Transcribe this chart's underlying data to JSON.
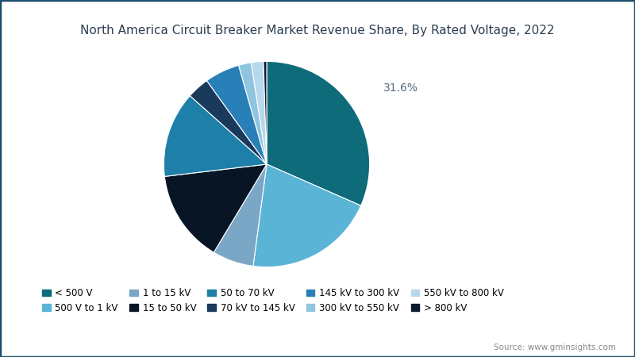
{
  "title": "North America Circuit Breaker Market Revenue Share, By Rated Voltage, 2022",
  "source": "Source: www.gminsights.com",
  "annotation": "31.6%",
  "slices": [
    {
      "label": "< 500 V",
      "value": 31.6,
      "color": "#0d6b7a"
    },
    {
      "label": "500 V to 1 kV",
      "value": 20.5,
      "color": "#5ab4d6"
    },
    {
      "label": "1 to 15 kV",
      "value": 6.5,
      "color": "#7ba7c7"
    },
    {
      "label": "15 to 50 kV",
      "value": 14.5,
      "color": "#071525"
    },
    {
      "label": "50 to 70 kV",
      "value": 13.5,
      "color": "#1e7fa8"
    },
    {
      "label": "70 kV to 145 kV",
      "value": 3.5,
      "color": "#1a3a5c"
    },
    {
      "label": "145 kV to 300 kV",
      "value": 5.5,
      "color": "#2980b9"
    },
    {
      "label": "300 kV to 550 kV",
      "value": 2.0,
      "color": "#90c5e0"
    },
    {
      "label": "550 kV to 800 kV",
      "value": 1.9,
      "color": "#b8d8ed"
    },
    {
      "label": "> 800 kV",
      "value": 0.5,
      "color": "#0d1b2e"
    }
  ],
  "background_color": "#ffffff",
  "border_color": "#1a4f6e",
  "title_color": "#2c3e50",
  "title_fontsize": 11,
  "annotation_fontsize": 10,
  "annotation_color": "#5a6a7a",
  "legend_fontsize": 8.5,
  "source_fontsize": 7.5,
  "source_color": "#888888"
}
